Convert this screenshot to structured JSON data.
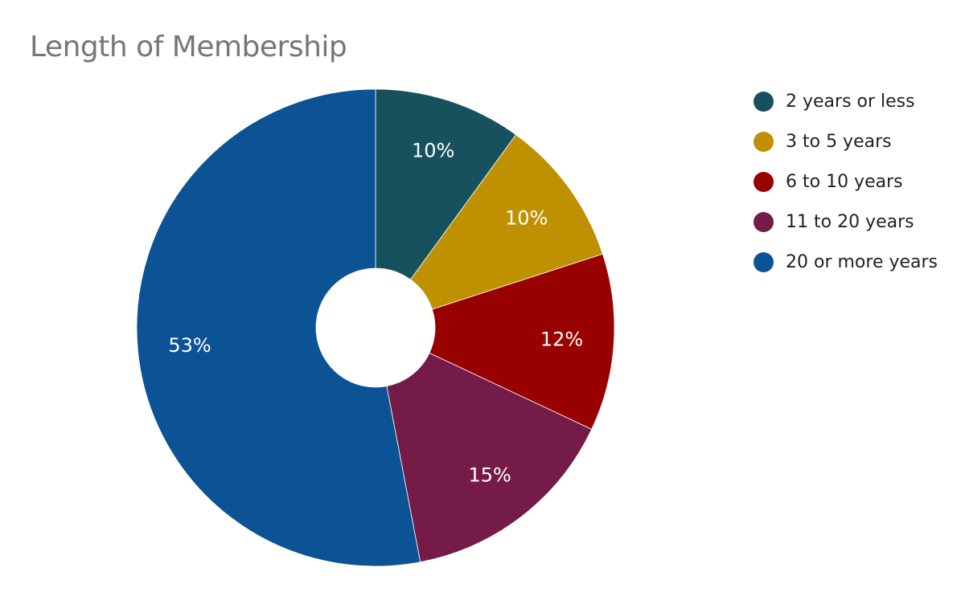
{
  "chart_data": {
    "type": "pie",
    "title": "Length of Membership",
    "donut": true,
    "legend_position": "right",
    "categories": [
      "2 years or less",
      "3 to 5 years",
      "6 to 10 years",
      "11 to 20 years",
      "20 or more years"
    ],
    "values": [
      10,
      10,
      12,
      15,
      53
    ],
    "labels": [
      "10%",
      "10%",
      "12%",
      "15%",
      "53%"
    ],
    "colors": [
      "#17515e",
      "#bf9000",
      "#990000",
      "#741b47",
      "#0b5394"
    ]
  }
}
